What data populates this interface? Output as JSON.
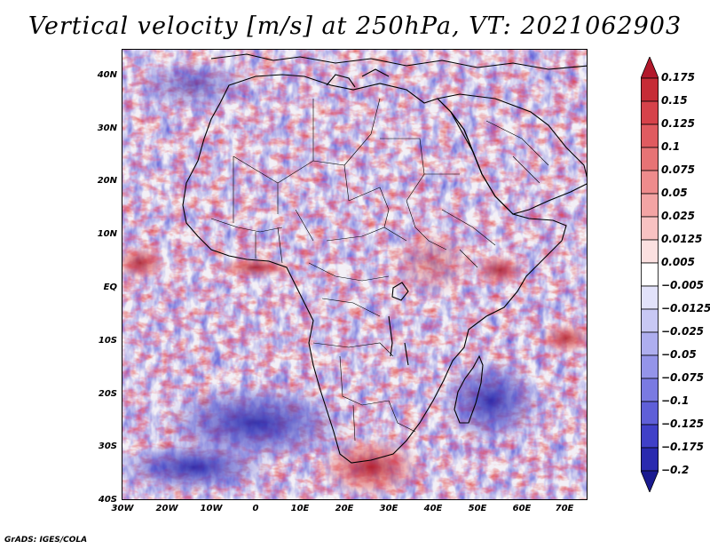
{
  "title": "Vertical velocity [m/s] at 250hPa, VT: 2021062903",
  "credit": "GrADS: IGES/COLA",
  "map": {
    "lat_labels": [
      "40N",
      "30N",
      "20N",
      "10N",
      "EQ",
      "10S",
      "20S",
      "30S",
      "40S"
    ],
    "lon_labels": [
      "30W",
      "20W",
      "10W",
      "0",
      "10E",
      "20E",
      "30E",
      "40E",
      "50E",
      "60E",
      "70E"
    ],
    "lat_range": [
      -40,
      45
    ],
    "lon_range": [
      -30,
      75
    ]
  },
  "colorbar": {
    "labels": [
      "0.175",
      "0.15",
      "0.125",
      "0.1",
      "0.075",
      "0.05",
      "0.025",
      "0.0125",
      "0.005",
      "−0.005",
      "−0.0125",
      "−0.025",
      "−0.05",
      "−0.075",
      "−0.1",
      "−0.125",
      "−0.175",
      "−0.2"
    ],
    "colors": [
      "#b2182b",
      "#c62c36",
      "#d6424a",
      "#e05b60",
      "#e77375",
      "#ee8b8c",
      "#f3a4a4",
      "#f8c2c2",
      "#fbe0e0",
      "#ffffff",
      "#e2e2fa",
      "#c8c8f4",
      "#aeaeef",
      "#9494e9",
      "#7a7ae2",
      "#5f5fd8",
      "#4040c8",
      "#2a2aaf",
      "#1a1a90"
    ]
  },
  "colors": {
    "background": "#ffffff",
    "map_base": "#f3f0f6",
    "coastline": "#000000"
  }
}
